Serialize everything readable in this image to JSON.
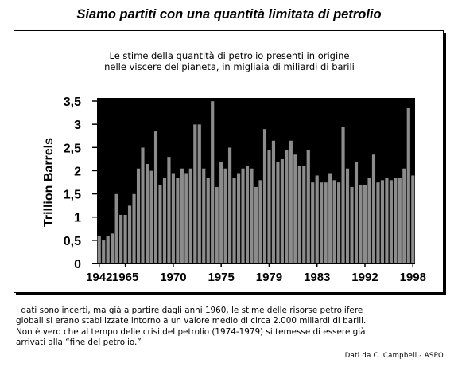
{
  "page": {
    "title": "Siamo partiti con una quantità limitata di petrolio",
    "subtitle_line1": "Le stime della quantità di petrolio presenti in origine",
    "subtitle_line2": "nelle viscere del pianeta, in migliaia di miliardi di barili",
    "footer_line1": "I dati sono incerti, ma già a partire dagli anni 1960, le stime delle risorse petrolifere",
    "footer_line2": "globali si erano stabilizzate intorno a un valore medio di circa 2.000 miliardi di barili.",
    "footer_line3": "Non è vero che al tempo delle crisi del petrolio (1974-1979) si temesse di essere già",
    "footer_line4": "arrivati alla “fine del petrolio.”",
    "credit": "Dati da C. Campbell - ASPO"
  },
  "colors": {
    "bar_fill": "#8c8c8c",
    "bar_stroke": "#000000",
    "plot_background": "#000000"
  },
  "chart_data": {
    "type": "bar",
    "title": "",
    "ylabel": "Trillion Barrels",
    "xlabel": "",
    "ylim": [
      0,
      3.5
    ],
    "yticks": [
      0,
      0.5,
      1,
      1.5,
      2,
      2.5,
      3,
      3.5
    ],
    "ytick_labels": [
      "0",
      "0,5",
      "1",
      "1,5",
      "2",
      "2,5",
      "3",
      "3,5"
    ],
    "xtick_labels": [
      "1942",
      "1965",
      "1970",
      "1975",
      "1979",
      "1983",
      "1992",
      "1998"
    ],
    "xtick_bar_index": [
      0,
      6,
      17,
      28,
      39,
      50,
      61,
      72
    ],
    "grid": false,
    "values": [
      0.6,
      0.5,
      0.6,
      0.65,
      1.5,
      1.05,
      1.05,
      1.25,
      1.5,
      2.05,
      2.5,
      2.15,
      2.0,
      2.85,
      1.7,
      1.85,
      2.3,
      1.95,
      1.85,
      2.05,
      1.95,
      2.05,
      3.0,
      3.0,
      2.05,
      1.85,
      3.5,
      1.65,
      2.2,
      2.05,
      2.5,
      1.85,
      1.95,
      2.05,
      2.1,
      2.05,
      1.65,
      1.8,
      2.9,
      2.45,
      2.65,
      2.2,
      2.25,
      2.45,
      2.65,
      2.35,
      2.1,
      2.1,
      2.45,
      1.75,
      1.9,
      1.75,
      1.75,
      1.95,
      1.8,
      1.75,
      2.95,
      2.05,
      1.65,
      2.2,
      1.7,
      1.7,
      1.85,
      2.35,
      1.75,
      1.8,
      1.85,
      1.8,
      1.85,
      1.85,
      2.05,
      3.35,
      1.9
    ]
  }
}
